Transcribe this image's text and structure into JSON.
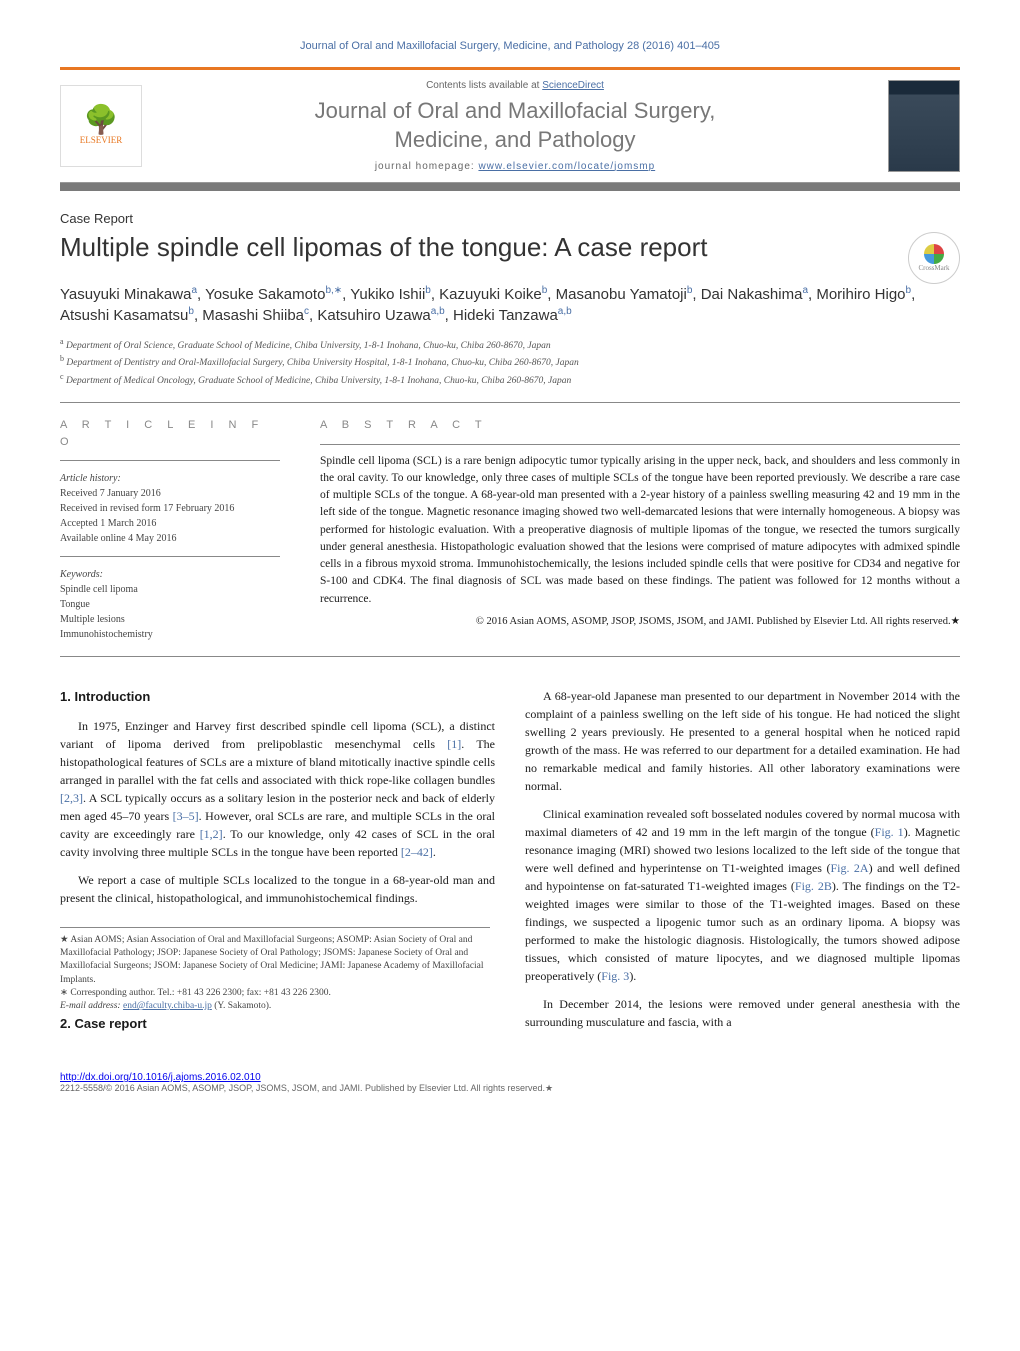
{
  "top_citation": "Journal of Oral and Maxillofacial Surgery, Medicine, and Pathology 28 (2016) 401–405",
  "header": {
    "contents_prefix": "Contents lists available at ",
    "contents_link": "ScienceDirect",
    "journal_title_l1": "Journal of Oral and Maxillofacial Surgery,",
    "journal_title_l2": "Medicine, and Pathology",
    "homepage_prefix": "journal homepage: ",
    "homepage_link": "www.elsevier.com/locate/jomsmp",
    "publisher": "ELSEVIER"
  },
  "article_type": "Case Report",
  "title": "Multiple spindle cell lipomas of the tongue: A case report",
  "crossmark_label": "CrossMark",
  "authors_html": "Yasuyuki Minakawa<sup>a</sup>, Yosuke Sakamoto<sup>b,∗</sup>, Yukiko Ishii<sup>b</sup>, Kazuyuki Koike<sup>b</sup>, Masanobu Yamatoji<sup>b</sup>, Dai Nakashima<sup>a</sup>, Morihiro Higo<sup>b</sup>, Atsushi Kasamatsu<sup>b</sup>, Masashi Shiiba<sup>c</sup>, Katsuhiro Uzawa<sup>a,b</sup>, Hideki Tanzawa<sup>a,b</sup>",
  "affiliations": [
    {
      "sup": "a",
      "text": "Department of Oral Science, Graduate School of Medicine, Chiba University, 1-8-1 Inohana, Chuo-ku, Chiba 260-8670, Japan"
    },
    {
      "sup": "b",
      "text": "Department of Dentistry and Oral-Maxillofacial Surgery, Chiba University Hospital, 1-8-1 Inohana, Chuo-ku, Chiba 260-8670, Japan"
    },
    {
      "sup": "c",
      "text": "Department of Medical Oncology, Graduate School of Medicine, Chiba University, 1-8-1 Inohana, Chuo-ku, Chiba 260-8670, Japan"
    }
  ],
  "info": {
    "heading": "A R T I C L E   I N F O",
    "history_label": "Article history:",
    "received": "Received 7 January 2016",
    "revised": "Received in revised form 17 February 2016",
    "accepted": "Accepted 1 March 2016",
    "online": "Available online 4 May 2016",
    "keywords_label": "Keywords:",
    "keywords": [
      "Spindle cell lipoma",
      "Tongue",
      "Multiple lesions",
      "Immunohistochemistry"
    ]
  },
  "abstract": {
    "heading": "A B S T R A C T",
    "text": "Spindle cell lipoma (SCL) is a rare benign adipocytic tumor typically arising in the upper neck, back, and shoulders and less commonly in the oral cavity. To our knowledge, only three cases of multiple SCLs of the tongue have been reported previously. We describe a rare case of multiple SCLs of the tongue. A 68-year-old man presented with a 2-year history of a painless swelling measuring 42 and 19 mm in the left side of the tongue. Magnetic resonance imaging showed two well-demarcated lesions that were internally homogeneous. A biopsy was performed for histologic evaluation. With a preoperative diagnosis of multiple lipomas of the tongue, we resected the tumors surgically under general anesthesia. Histopathologic evaluation showed that the lesions were comprised of mature adipocytes with admixed spindle cells in a fibrous myxoid stroma. Immunohistochemically, the lesions included spindle cells that were positive for CD34 and negative for S-100 and CDK4. The final diagnosis of SCL was made based on these findings. The patient was followed for 12 months without a recurrence.",
    "copyright": "© 2016 Asian AOMS, ASOMP, JSOP, JSOMS, JSOM, and JAMI. Published by Elsevier Ltd. All rights reserved.★"
  },
  "body": {
    "intro_heading": "1. Introduction",
    "intro_p1": "In 1975, Enzinger and Harvey first described spindle cell lipoma (SCL), a distinct variant of lipoma derived from prelipoblastic mesenchymal cells [1]. The histopathological features of SCLs are a mixture of bland mitotically inactive spindle cells arranged in parallel with the fat cells and associated with thick rope-like collagen bundles [2,3]. A SCL typically occurs as a solitary lesion in the posterior neck and back of elderly men aged 45–70 years [3–5]. However, oral SCLs are rare, and multiple SCLs in the oral cavity are exceedingly rare [1,2]. To our knowledge, only 42 cases of SCL in the oral cavity involving three multiple SCLs in the tongue have been reported [2–42].",
    "intro_p2": "We report a case of multiple SCLs localized to the tongue in a 68-year-old man and present the clinical, histopathological, and immunohistochemical findings.",
    "case_heading": "2. Case report",
    "case_p1": "A 68-year-old Japanese man presented to our department in November 2014 with the complaint of a painless swelling on the left side of his tongue. He had noticed the slight swelling 2 years previously. He presented to a general hospital when he noticed rapid growth of the mass. He was referred to our department for a detailed examination. He had no remarkable medical and family histories. All other laboratory examinations were normal.",
    "case_p2": "Clinical examination revealed soft bosselated nodules covered by normal mucosa with maximal diameters of 42 and 19 mm in the left margin of the tongue (Fig. 1). Magnetic resonance imaging (MRI) showed two lesions localized to the left side of the tongue that were well defined and hyperintense on T1-weighted images (Fig. 2A) and well defined and hypointense on fat-saturated T1-weighted images (Fig. 2B). The findings on the T2-weighted images were similar to those of the T1-weighted images. Based on these findings, we suspected a lipogenic tumor such as an ordinary lipoma. A biopsy was performed to make the histologic diagnosis. Histologically, the tumors showed adipose tissues, which consisted of mature lipocytes, and we diagnosed multiple lipomas preoperatively (Fig. 3).",
    "case_p3": "In December 2014, the lesions were removed under general anesthesia with the surrounding musculature and fascia, with a"
  },
  "footnotes": {
    "star": "★ Asian AOMS; Asian Association of Oral and Maxillofacial Surgeons; ASOMP: Asian Society of Oral and Maxillofacial Pathology; JSOP: Japanese Society of Oral Pathology; JSOMS: Japanese Society of Oral and Maxillofacial Surgeons; JSOM: Japanese Society of Oral Medicine; JAMI: Japanese Academy of Maxillofacial Implants.",
    "corr": "∗ Corresponding author. Tel.: +81 43 226 2300; fax: +81 43 226 2300.",
    "email_label": "E-mail address: ",
    "email": "end@faculty.chiba-u.jp",
    "email_suffix": " (Y. Sakamoto)."
  },
  "doi": {
    "url": "http://dx.doi.org/10.1016/j.ajoms.2016.02.010",
    "line": "2212-5558/© 2016 Asian AOMS, ASOMP, JSOP, JSOMS, JSOM, and JAMI. Published by Elsevier Ltd. All rights reserved.★"
  },
  "colors": {
    "orange": "#e87722",
    "link": "#4a6fa5",
    "grey_bar": "#7a7a7a",
    "text": "#1a1a1a"
  }
}
